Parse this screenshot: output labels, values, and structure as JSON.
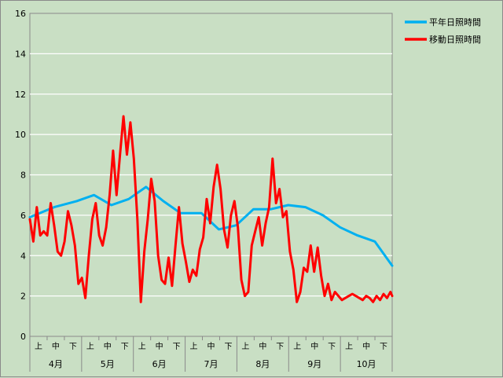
{
  "chart_data": {
    "type": "line",
    "title": "",
    "xlabel": "",
    "ylabel": "",
    "ylim": [
      0,
      16
    ],
    "yticks": [
      "0",
      "2",
      "4",
      "6",
      "8",
      "10",
      "12",
      "14",
      "16"
    ],
    "grid": true,
    "legend_position": "top-right",
    "months": [
      "4月",
      "5月",
      "6月",
      "7月",
      "8月",
      "9月",
      "10月"
    ],
    "dekads": [
      "上",
      "中",
      "下"
    ],
    "x_range": [
      1,
      210
    ],
    "series": [
      {
        "name": "平年日照時間",
        "color": "#00b0f0",
        "x": [
          1,
          15,
          28,
          38,
          48,
          58,
          68,
          78,
          88,
          100,
          110,
          120,
          130,
          140,
          150,
          160,
          170,
          180,
          190,
          200,
          210
        ],
        "y": [
          5.9,
          6.4,
          6.7,
          7.0,
          6.5,
          6.8,
          7.4,
          6.7,
          6.1,
          6.1,
          5.3,
          5.5,
          6.3,
          6.3,
          6.5,
          6.4,
          6.0,
          5.4,
          5.0,
          4.7,
          3.5
        ]
      },
      {
        "name": "移動日照時間",
        "color": "#ff0000",
        "x": [
          1,
          3,
          5,
          7,
          9,
          11,
          13,
          15,
          17,
          19,
          21,
          23,
          25,
          27,
          29,
          31,
          33,
          35,
          37,
          39,
          41,
          43,
          45,
          47,
          49,
          51,
          53,
          55,
          57,
          59,
          61,
          63,
          65,
          67,
          69,
          71,
          73,
          75,
          77,
          79,
          81,
          83,
          85,
          87,
          89,
          91,
          93,
          95,
          97,
          99,
          101,
          103,
          105,
          107,
          109,
          111,
          113,
          115,
          117,
          119,
          121,
          123,
          125,
          127,
          129,
          131,
          133,
          135,
          137,
          139,
          141,
          143,
          145,
          147,
          149,
          151,
          153,
          155,
          157,
          159,
          161,
          163,
          165,
          167,
          169,
          171,
          173,
          175,
          177,
          179,
          181,
          183,
          185,
          187,
          189,
          191,
          193,
          195,
          197,
          199,
          201,
          203,
          205,
          207,
          209,
          210
        ],
        "y": [
          5.8,
          4.7,
          6.4,
          5.0,
          5.2,
          5.0,
          6.6,
          5.5,
          4.2,
          4.0,
          4.7,
          6.2,
          5.5,
          4.5,
          2.6,
          2.9,
          1.9,
          4.0,
          5.8,
          6.6,
          5.0,
          4.5,
          5.4,
          7.0,
          9.2,
          7.0,
          9.0,
          10.9,
          9.0,
          10.6,
          8.8,
          5.8,
          1.7,
          4.2,
          5.8,
          7.8,
          6.7,
          4.0,
          2.8,
          2.6,
          3.9,
          2.5,
          4.5,
          6.4,
          4.6,
          3.7,
          2.7,
          3.3,
          3.0,
          4.3,
          4.9,
          6.8,
          5.6,
          7.4,
          8.5,
          7.3,
          5.3,
          4.4,
          6.0,
          6.7,
          5.4,
          2.8,
          2.0,
          2.2,
          4.5,
          5.2,
          5.9,
          4.5,
          5.6,
          6.4,
          8.8,
          6.6,
          7.3,
          5.9,
          6.2,
          4.2,
          3.3,
          1.7,
          2.2,
          3.4,
          3.2,
          4.5,
          3.2,
          4.4,
          3.0,
          2.0,
          2.6,
          1.8,
          2.2,
          2.0,
          1.8,
          1.9,
          2.0,
          2.1,
          2.0,
          1.9,
          1.8,
          2.0,
          1.9,
          1.7,
          2.0,
          1.8,
          2.1,
          1.9,
          2.2,
          2.0
        ]
      }
    ]
  }
}
